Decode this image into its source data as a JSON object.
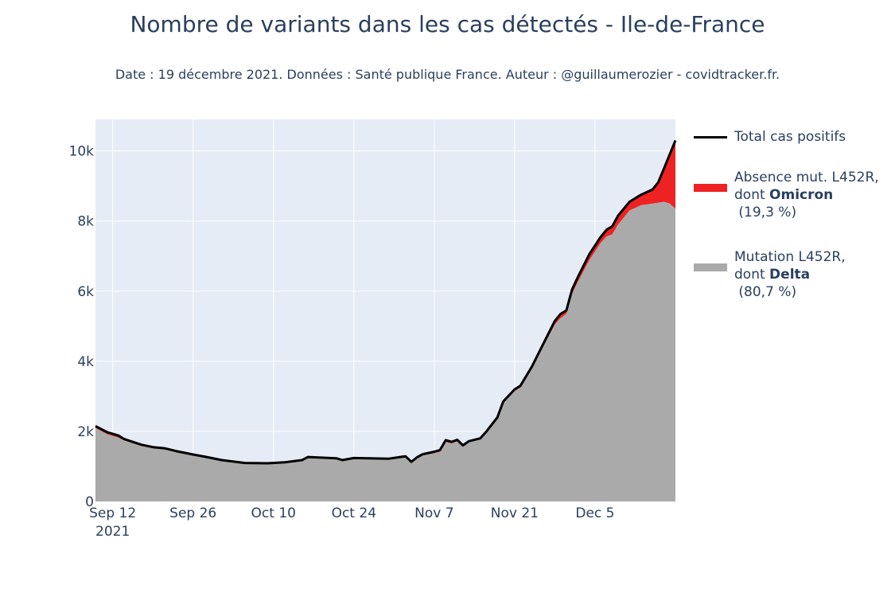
{
  "chart_data": {
    "type": "area",
    "title": "Nombre de variants dans les cas détectés - Ile-de-France",
    "subtitle": "Date : 19 décembre 2021. Données : Santé publique France. Auteur : @guillaumerozier - covidtracker.fr.",
    "x_range": [
      "2021-09-09",
      "2021-12-19"
    ],
    "ylim": [
      0,
      10900
    ],
    "x_ticks": [
      {
        "date": "2021-09-12",
        "label": "Sep 12",
        "sublabel": "2021"
      },
      {
        "date": "2021-09-26",
        "label": "Sep 26",
        "sublabel": ""
      },
      {
        "date": "2021-10-10",
        "label": "Oct 10",
        "sublabel": ""
      },
      {
        "date": "2021-10-24",
        "label": "Oct 24",
        "sublabel": ""
      },
      {
        "date": "2021-11-07",
        "label": "Nov 7",
        "sublabel": ""
      },
      {
        "date": "2021-11-21",
        "label": "Nov 21",
        "sublabel": ""
      },
      {
        "date": "2021-12-05",
        "label": "Dec 5",
        "sublabel": ""
      }
    ],
    "y_ticks": [
      {
        "value": 0,
        "label": "0"
      },
      {
        "value": 2000,
        "label": "2k"
      },
      {
        "value": 4000,
        "label": "4k"
      },
      {
        "value": 6000,
        "label": "6k"
      },
      {
        "value": 8000,
        "label": "8k"
      },
      {
        "value": 10000,
        "label": "10k"
      }
    ],
    "grid": true,
    "legend_position": "right",
    "series": [
      {
        "name": "Total cas positifs",
        "kind": "line",
        "color": "#000000",
        "points": [
          [
            "2021-09-09",
            2150
          ],
          [
            "2021-09-11",
            1980
          ],
          [
            "2021-09-13",
            1880
          ],
          [
            "2021-09-14",
            1780
          ],
          [
            "2021-09-17",
            1620
          ],
          [
            "2021-09-19",
            1550
          ],
          [
            "2021-09-21",
            1520
          ],
          [
            "2021-09-23",
            1440
          ],
          [
            "2021-09-26",
            1340
          ],
          [
            "2021-09-28",
            1280
          ],
          [
            "2021-10-01",
            1180
          ],
          [
            "2021-10-05",
            1100
          ],
          [
            "2021-10-09",
            1090
          ],
          [
            "2021-10-12",
            1120
          ],
          [
            "2021-10-15",
            1180
          ],
          [
            "2021-10-16",
            1270
          ],
          [
            "2021-10-21",
            1230
          ],
          [
            "2021-10-22",
            1180
          ],
          [
            "2021-10-24",
            1240
          ],
          [
            "2021-10-30",
            1220
          ],
          [
            "2021-11-02",
            1290
          ],
          [
            "2021-11-03",
            1130
          ],
          [
            "2021-11-04",
            1260
          ],
          [
            "2021-11-05",
            1350
          ],
          [
            "2021-11-07",
            1420
          ],
          [
            "2021-11-08",
            1470
          ],
          [
            "2021-11-09",
            1750
          ],
          [
            "2021-11-10",
            1700
          ],
          [
            "2021-11-11",
            1760
          ],
          [
            "2021-11-12",
            1600
          ],
          [
            "2021-11-13",
            1720
          ],
          [
            "2021-11-15",
            1800
          ],
          [
            "2021-11-16",
            1980
          ],
          [
            "2021-11-18",
            2400
          ],
          [
            "2021-11-19",
            2850
          ],
          [
            "2021-11-21",
            3200
          ],
          [
            "2021-11-22",
            3300
          ],
          [
            "2021-11-24",
            3850
          ],
          [
            "2021-11-26",
            4500
          ],
          [
            "2021-11-28",
            5150
          ],
          [
            "2021-11-29",
            5350
          ],
          [
            "2021-11-30",
            5450
          ],
          [
            "2021-12-01",
            6050
          ],
          [
            "2021-12-02",
            6400
          ],
          [
            "2021-12-04",
            7050
          ],
          [
            "2021-12-06",
            7550
          ],
          [
            "2021-12-07",
            7750
          ],
          [
            "2021-12-08",
            7850
          ],
          [
            "2021-12-09",
            8150
          ],
          [
            "2021-12-11",
            8550
          ],
          [
            "2021-12-13",
            8750
          ],
          [
            "2021-12-15",
            8900
          ],
          [
            "2021-12-16",
            9100
          ],
          [
            "2021-12-17",
            9500
          ],
          [
            "2021-12-19",
            10300
          ]
        ]
      },
      {
        "name": "Absence mut. L452R,",
        "name_line2": "dont ",
        "name_bold": "Omicron",
        "name_pct": " (19,3 %)",
        "kind": "area",
        "color": "#ee2222",
        "note": "stacked between Mutation L452R and Total cas positifs"
      },
      {
        "name": "Mutation L452R,",
        "name_line2": "dont ",
        "name_bold": "Delta",
        "name_pct": " (80,7 %)",
        "kind": "area",
        "color": "#aaaaaa",
        "points": [
          [
            "2021-09-09",
            2100
          ],
          [
            "2021-09-11",
            1920
          ],
          [
            "2021-09-13",
            1820
          ],
          [
            "2021-09-14",
            1740
          ],
          [
            "2021-09-17",
            1580
          ],
          [
            "2021-09-19",
            1520
          ],
          [
            "2021-09-21",
            1490
          ],
          [
            "2021-09-23",
            1410
          ],
          [
            "2021-09-26",
            1310
          ],
          [
            "2021-09-28",
            1250
          ],
          [
            "2021-10-01",
            1160
          ],
          [
            "2021-10-05",
            1080
          ],
          [
            "2021-10-09",
            1070
          ],
          [
            "2021-10-12",
            1100
          ],
          [
            "2021-10-15",
            1160
          ],
          [
            "2021-10-16",
            1250
          ],
          [
            "2021-10-21",
            1210
          ],
          [
            "2021-10-22",
            1160
          ],
          [
            "2021-10-24",
            1220
          ],
          [
            "2021-10-30",
            1200
          ],
          [
            "2021-11-02",
            1270
          ],
          [
            "2021-11-03",
            1110
          ],
          [
            "2021-11-04",
            1230
          ],
          [
            "2021-11-05",
            1310
          ],
          [
            "2021-11-07",
            1380
          ],
          [
            "2021-11-08",
            1420
          ],
          [
            "2021-11-09",
            1700
          ],
          [
            "2021-11-10",
            1650
          ],
          [
            "2021-11-11",
            1720
          ],
          [
            "2021-11-12",
            1570
          ],
          [
            "2021-11-13",
            1690
          ],
          [
            "2021-11-15",
            1770
          ],
          [
            "2021-11-16",
            1950
          ],
          [
            "2021-11-18",
            2360
          ],
          [
            "2021-11-19",
            2800
          ],
          [
            "2021-11-21",
            3150
          ],
          [
            "2021-11-22",
            3250
          ],
          [
            "2021-11-24",
            3780
          ],
          [
            "2021-11-26",
            4430
          ],
          [
            "2021-11-28",
            5050
          ],
          [
            "2021-11-29",
            5230
          ],
          [
            "2021-11-30",
            5350
          ],
          [
            "2021-12-01",
            5920
          ],
          [
            "2021-12-02",
            6260
          ],
          [
            "2021-12-04",
            6880
          ],
          [
            "2021-12-06",
            7380
          ],
          [
            "2021-12-07",
            7560
          ],
          [
            "2021-12-08",
            7620
          ],
          [
            "2021-12-09",
            7900
          ],
          [
            "2021-12-11",
            8300
          ],
          [
            "2021-12-13",
            8450
          ],
          [
            "2021-12-15",
            8500
          ],
          [
            "2021-12-16",
            8520
          ],
          [
            "2021-12-17",
            8550
          ],
          [
            "2021-12-18",
            8500
          ],
          [
            "2021-12-19",
            8350
          ]
        ]
      }
    ]
  }
}
